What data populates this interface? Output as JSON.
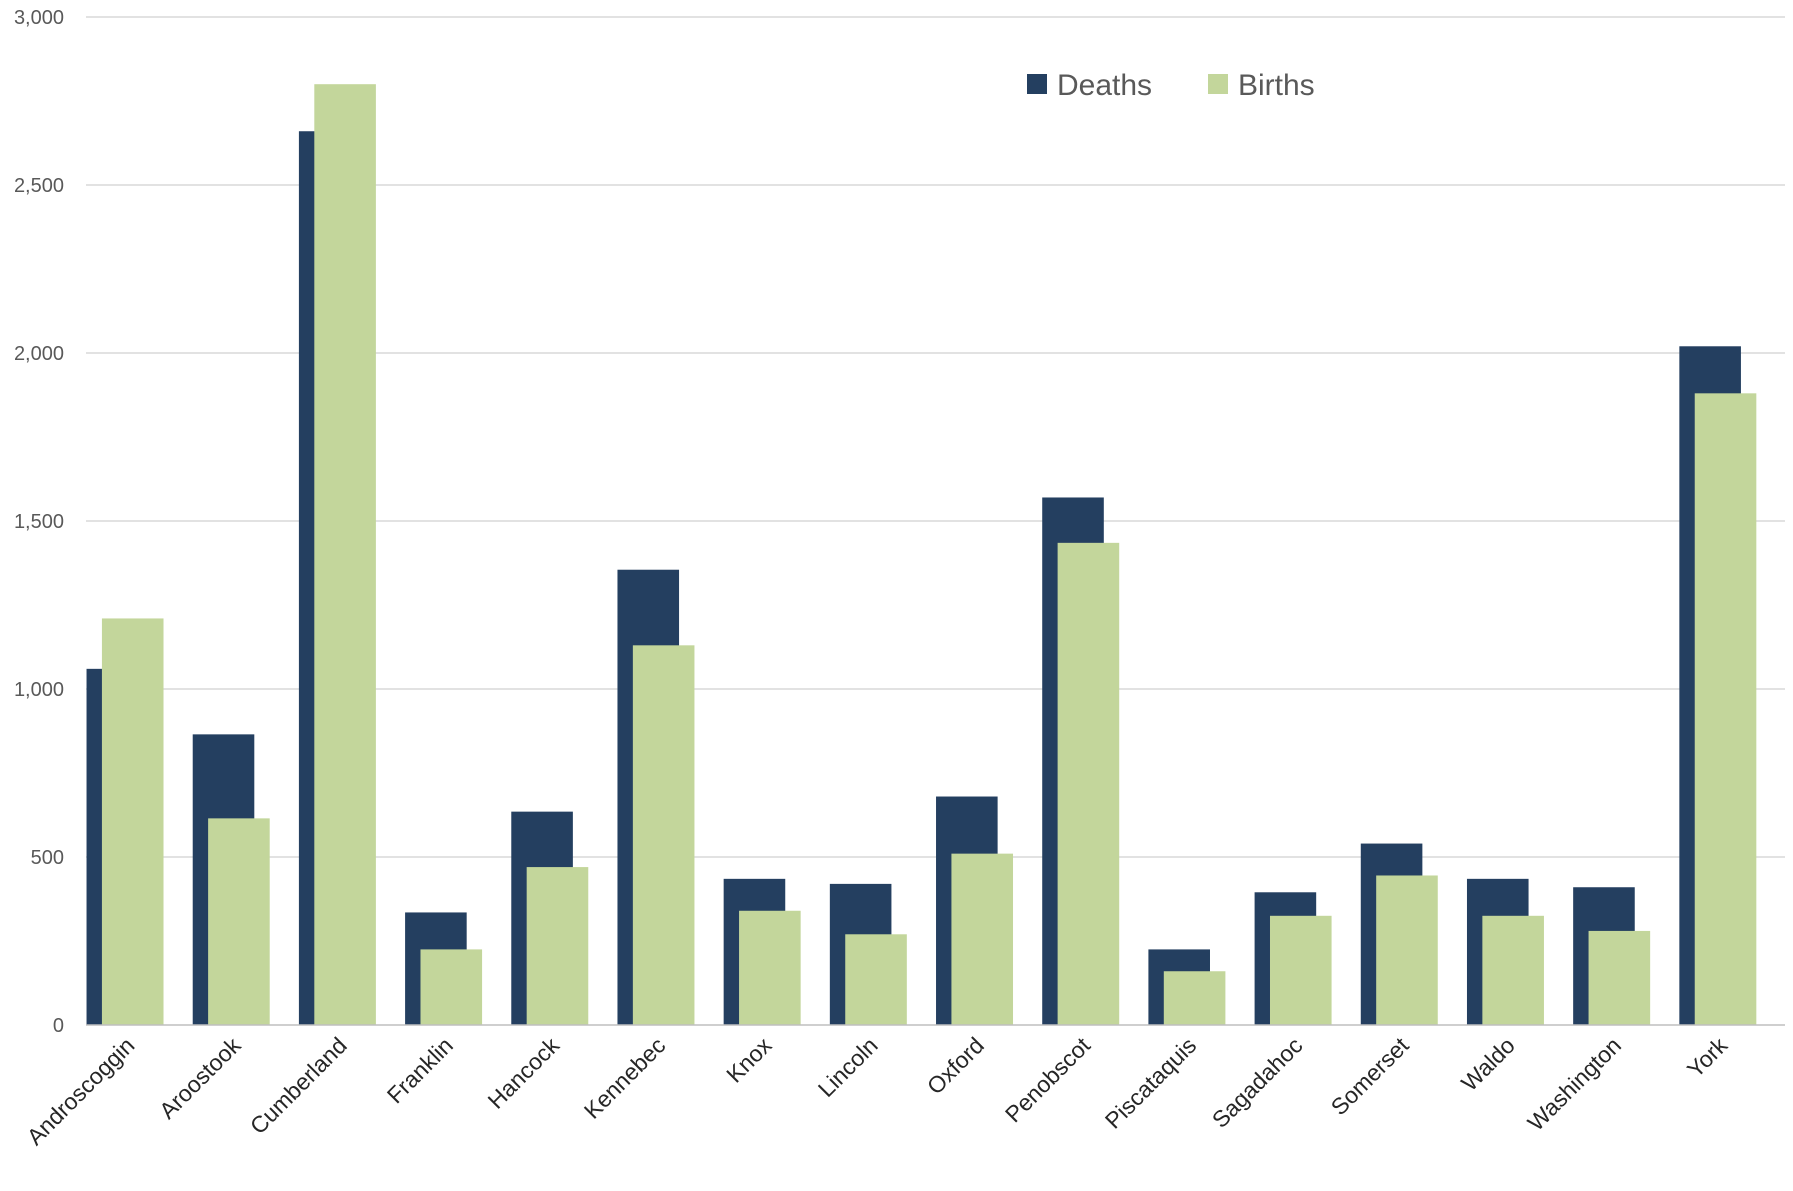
{
  "chart_data": {
    "type": "bar",
    "title": "",
    "xlabel": "",
    "ylabel": "",
    "ylim": [
      0,
      3000
    ],
    "y_ticks": [
      0,
      500,
      1000,
      1500,
      2000,
      2500,
      3000
    ],
    "y_tick_labels": [
      "0",
      "500",
      "1,000",
      "1,500",
      "2,000",
      "2,500",
      "3,000"
    ],
    "grid": true,
    "legend_position": "top-right",
    "categories": [
      "Androscoggin",
      "Aroostook",
      "Cumberland",
      "Franklin",
      "Hancock",
      "Kennebec",
      "Knox",
      "Lincoln",
      "Oxford",
      "Penobscot",
      "Piscataquis",
      "Sagadahoc",
      "Somerset",
      "Waldo",
      "Washington",
      "York"
    ],
    "series": [
      {
        "name": "Deaths",
        "color": "#243f60",
        "values": [
          1060,
          865,
          2660,
          335,
          635,
          1355,
          435,
          420,
          680,
          1570,
          225,
          395,
          540,
          435,
          410,
          2020
        ]
      },
      {
        "name": "Births",
        "color": "#c3d69b",
        "values": [
          1210,
          615,
          2800,
          225,
          470,
          1130,
          340,
          270,
          510,
          1435,
          160,
          325,
          445,
          325,
          280,
          1880
        ]
      }
    ]
  }
}
